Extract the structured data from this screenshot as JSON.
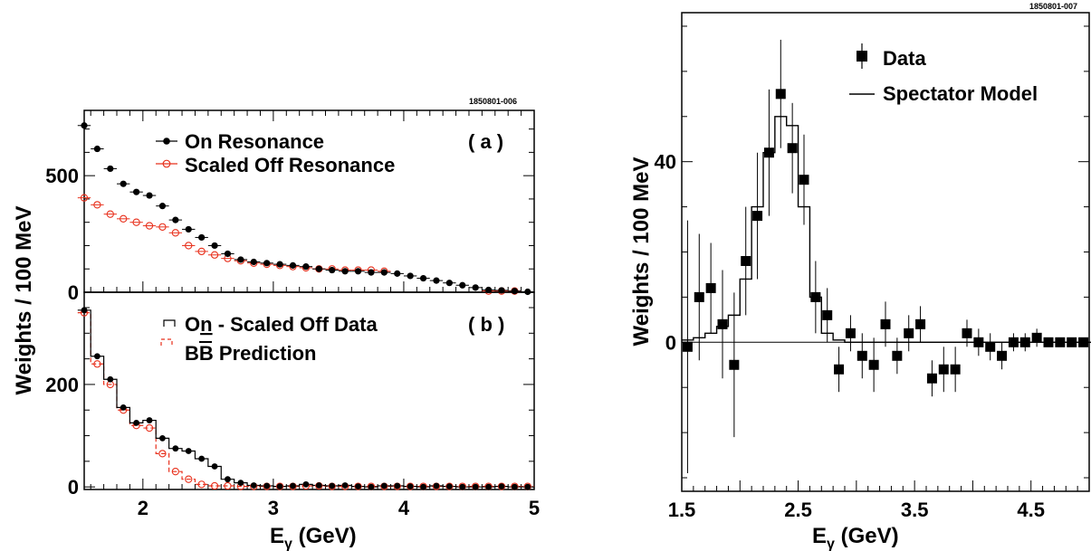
{
  "chart_data": [
    {
      "panel": "a",
      "type": "scatter",
      "tag": "1850801-006",
      "panel_label": "( a )",
      "ylabel": "Weights / 100 MeV",
      "xlim": [
        1.55,
        5.0
      ],
      "ylim": [
        0,
        780
      ],
      "yticks": [
        0,
        500
      ],
      "grid": false,
      "legend_position": "top-right",
      "series": [
        {
          "name": "On Resonance",
          "color": "#000000",
          "marker": "filled-circle",
          "x": [
            1.55,
            1.65,
            1.75,
            1.85,
            1.95,
            2.05,
            2.15,
            2.25,
            2.35,
            2.45,
            2.55,
            2.65,
            2.75,
            2.85,
            2.95,
            3.05,
            3.15,
            3.25,
            3.35,
            3.45,
            3.55,
            3.65,
            3.75,
            3.85,
            3.95,
            4.05,
            4.15,
            4.25,
            4.35,
            4.45,
            4.55,
            4.65,
            4.75,
            4.85,
            4.95
          ],
          "y": [
            715,
            615,
            530,
            465,
            430,
            415,
            370,
            310,
            270,
            235,
            200,
            165,
            140,
            130,
            125,
            120,
            115,
            110,
            100,
            95,
            90,
            90,
            85,
            85,
            80,
            70,
            60,
            50,
            40,
            30,
            20,
            10,
            8,
            5,
            2
          ]
        },
        {
          "name": "Scaled Off Resonance",
          "color": "#e8301c",
          "marker": "open-circle",
          "x": [
            1.55,
            1.65,
            1.75,
            1.85,
            1.95,
            2.05,
            2.15,
            2.25,
            2.35,
            2.45,
            2.55,
            2.65,
            2.75,
            2.85,
            2.95,
            3.05,
            3.15,
            3.25,
            3.35,
            3.45,
            3.55,
            3.65,
            3.75,
            3.85,
            4.65,
            4.75,
            4.85
          ],
          "y": [
            405,
            375,
            335,
            315,
            300,
            285,
            280,
            255,
            200,
            175,
            160,
            145,
            135,
            125,
            120,
            115,
            110,
            105,
            100,
            100,
            95,
            95,
            95,
            90,
            5,
            5,
            5
          ]
        }
      ]
    },
    {
      "panel": "b",
      "type": "scatter",
      "panel_label": "( b )",
      "xlabel": "E",
      "xlabel_sub": "γ",
      "xlabel_unit": " (GeV)",
      "xlim": [
        1.55,
        5.0
      ],
      "ylim": [
        -5,
        380
      ],
      "xticks": [
        2,
        3,
        4,
        5
      ],
      "yticks": [
        0,
        200
      ],
      "grid": false,
      "legend_position": "top-right",
      "series": [
        {
          "name": "On - Scaled Off Data",
          "name_parts": [
            "O",
            "n",
            " - Scaled Off Data"
          ],
          "color": "#000000",
          "marker": "filled-circle",
          "style": "solid-step",
          "x": [
            1.55,
            1.65,
            1.75,
            1.85,
            1.95,
            2.05,
            2.15,
            2.25,
            2.35,
            2.45,
            2.55,
            2.65,
            2.75,
            2.85,
            2.95,
            3.05,
            3.15,
            3.25,
            3.35,
            3.45,
            3.55,
            3.65,
            3.75,
            3.85,
            3.95,
            4.05,
            4.15,
            4.25,
            4.35,
            4.45,
            4.55,
            4.65,
            4.75,
            4.85,
            4.95
          ],
          "y": [
            345,
            255,
            210,
            155,
            125,
            130,
            95,
            75,
            70,
            55,
            40,
            15,
            8,
            3,
            2,
            1,
            2,
            5,
            3,
            2,
            3,
            1,
            0,
            2,
            2,
            1,
            0,
            2,
            1,
            0,
            0,
            0,
            1,
            0,
            0
          ]
        },
        {
          "name": "BB Prediction",
          "name_parts": [
            "B",
            "B",
            " Prediction"
          ],
          "color": "#e8301c",
          "marker": "open-circle",
          "style": "dashed-step",
          "x": [
            1.55,
            1.65,
            1.75,
            1.85,
            1.95,
            2.05,
            2.15,
            2.25,
            2.35,
            2.45,
            2.55,
            2.65,
            2.75,
            2.85,
            2.95,
            3.05,
            3.15,
            3.25,
            3.35,
            3.45,
            3.55,
            3.65,
            3.75,
            3.85,
            3.95,
            4.05,
            4.15,
            4.25,
            4.35,
            4.45,
            4.55,
            4.65,
            4.75,
            4.85,
            4.95
          ],
          "y": [
            340,
            240,
            200,
            150,
            120,
            115,
            65,
            30,
            15,
            5,
            2,
            2,
            1,
            1,
            1,
            1,
            1,
            2,
            2,
            1,
            1,
            1,
            1,
            1,
            1,
            1,
            1,
            1,
            1,
            1,
            1,
            1,
            1,
            1,
            1
          ]
        }
      ]
    },
    {
      "panel": "c",
      "type": "scatter",
      "tag": "1850801-007",
      "xlabel": "E",
      "xlabel_sub": "γ",
      "xlabel_unit": " (GeV)",
      "ylabel": "Weights / 100 MeV",
      "xlim": [
        1.5,
        5.0
      ],
      "ylim": [
        -33,
        73
      ],
      "xticks": [
        1.5,
        2.5,
        3.5,
        4.5
      ],
      "xtick_labels": [
        "1.5",
        "2.5",
        "3.5",
        "4.5"
      ],
      "yticks": [
        0,
        40
      ],
      "grid": false,
      "legend_position": "top-right",
      "series": [
        {
          "name": "Data",
          "color": "#000000",
          "marker": "filled-square",
          "x": [
            1.55,
            1.65,
            1.75,
            1.85,
            1.95,
            2.05,
            2.15,
            2.25,
            2.35,
            2.45,
            2.55,
            2.65,
            2.75,
            2.85,
            2.95,
            3.05,
            3.15,
            3.25,
            3.35,
            3.45,
            3.55,
            3.65,
            3.75,
            3.85,
            3.95,
            4.05,
            4.15,
            4.25,
            4.35,
            4.45,
            4.55,
            4.65,
            4.75,
            4.85,
            4.95
          ],
          "y": [
            -1,
            10,
            12,
            4,
            -5,
            18,
            28,
            42,
            55,
            43,
            36,
            10,
            6,
            -6,
            2,
            -3,
            -5,
            4,
            -3,
            2,
            4,
            -8,
            -6,
            -6,
            2,
            0,
            -1,
            -3,
            0,
            0,
            1,
            0,
            0,
            0,
            0
          ],
          "yerr": [
            28,
            14,
            10,
            12,
            16,
            12,
            14,
            14,
            12,
            10,
            10,
            8,
            6,
            5,
            4,
            5,
            6,
            5,
            4,
            4,
            4,
            4,
            5,
            5,
            3,
            3,
            3,
            3,
            2,
            2,
            2,
            1,
            1,
            1,
            1
          ]
        },
        {
          "name": "Spectator Model",
          "color": "#000000",
          "style": "solid-step",
          "x": [
            1.5,
            1.6,
            1.7,
            1.8,
            1.9,
            2.0,
            2.1,
            2.2,
            2.3,
            2.4,
            2.5,
            2.6,
            2.7,
            2.8,
            2.9,
            3.0,
            5.0
          ],
          "y": [
            0.5,
            1,
            2,
            3.5,
            6,
            14,
            30,
            42,
            50,
            48,
            30,
            10,
            2,
            0.5,
            0,
            0,
            0
          ]
        }
      ]
    }
  ]
}
